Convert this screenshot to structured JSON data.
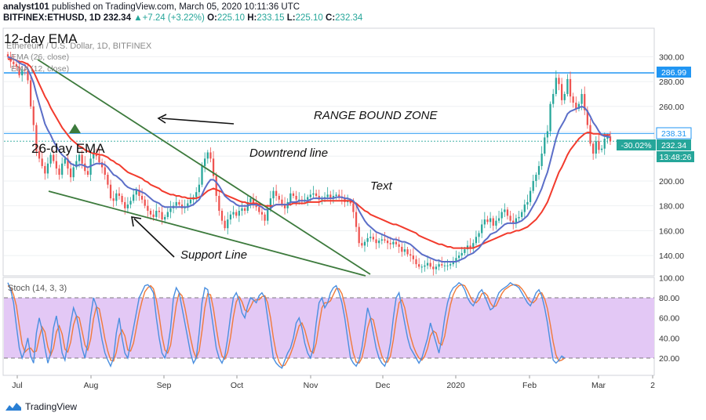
{
  "header": {
    "publisher": "analyst101",
    "published_text": "published on TradingView.com, March 05, 2020 10:11:36 UTC",
    "symbol": "BITFINEX:ETHUSD, 1D",
    "last": "232.34",
    "change": "+7.24 (+3.22%)",
    "ohlc": {
      "o": "225.10",
      "h": "233.15",
      "l": "225.10",
      "c": "232.34"
    }
  },
  "legend": {
    "title": "Ethereum / U.S. Dollar, 1D, BITFINEX",
    "ema1": "EMA (26, close)",
    "ema2": "EMA (12, close)"
  },
  "annotations": {
    "ema12": "12-day EMA",
    "ema26": "26-day EMA",
    "range_zone": "RANGE BOUND ZONE",
    "downtrend": "Downtrend line",
    "text": "Text",
    "support": "Support Line"
  },
  "price_labels": {
    "resistance": "286.99",
    "level2": "238.31",
    "current": "232.34",
    "pct": "-30.02%",
    "timer": "13:48:26"
  },
  "stoch_label": "Stoch (14, 3, 3)",
  "brand": "TradingView",
  "colors": {
    "up": "#26a69a",
    "down": "#ef5350",
    "ema_fast": "#5b6ec8",
    "ema_slow": "#f23b2d",
    "trendline": "#3c7a3c",
    "hline": "#2196f3",
    "stoch_fill": "#e3c8f5",
    "stoch_k": "#4a8fe0",
    "stoch_d": "#f07a3a"
  },
  "chart_data": {
    "type": "candlestick",
    "y_axis": {
      "ticks": [
        300,
        280,
        260,
        240,
        220,
        200,
        180,
        160,
        140
      ],
      "ylim": [
        130,
        318
      ]
    },
    "x_axis": {
      "ticks": [
        "Jul",
        "Aug",
        "Sep",
        "Oct",
        "Nov",
        "Dec",
        "2020",
        "Feb",
        "Mar",
        "2"
      ]
    },
    "horizontal_lines": [
      286.99,
      238.31
    ],
    "closes": [
      300,
      296,
      294,
      292,
      285,
      290,
      289,
      281,
      260,
      245,
      224,
      218,
      212,
      206,
      214,
      221,
      216,
      210,
      205,
      214,
      218,
      210,
      203,
      211,
      216,
      221,
      214,
      208,
      205,
      218,
      222,
      220,
      215,
      211,
      205,
      197,
      186,
      184,
      190,
      188,
      183,
      178,
      181,
      184,
      189,
      193,
      188,
      185,
      180,
      176,
      173,
      171,
      176,
      175,
      169,
      171,
      175,
      178,
      180,
      183,
      181,
      178,
      179,
      182,
      185,
      187,
      191,
      197,
      212,
      218,
      223,
      218,
      204,
      188,
      176,
      168,
      162,
      169,
      173,
      175,
      172,
      176,
      178,
      176,
      183,
      186,
      182,
      179,
      175,
      173,
      168,
      177,
      186,
      192,
      188,
      185,
      181,
      178,
      183,
      190,
      188,
      185,
      185,
      184,
      185,
      187,
      189,
      190,
      188,
      185,
      186,
      187,
      189,
      186,
      188,
      189,
      187,
      186,
      183,
      184,
      182,
      175,
      163,
      150,
      148,
      151,
      154,
      155,
      153,
      150,
      152,
      153,
      152,
      150,
      149,
      151,
      149,
      147,
      143,
      145,
      141,
      140,
      137,
      133,
      131,
      131,
      132,
      134,
      131,
      129,
      131,
      133,
      132,
      132,
      132,
      133,
      135,
      138,
      140,
      142,
      145,
      148,
      146,
      150,
      155,
      158,
      165,
      169,
      167,
      170,
      164,
      168,
      170,
      175,
      177,
      172,
      168,
      166,
      170,
      171,
      175,
      181,
      183,
      192,
      200,
      205,
      212,
      222,
      235,
      240,
      262,
      270,
      283,
      278,
      265,
      270,
      282,
      268,
      263,
      258,
      262,
      270,
      257,
      245,
      230,
      222,
      232,
      225,
      226,
      234,
      236,
      232
    ],
    "ema_12": [
      300,
      299,
      298,
      297,
      295,
      294,
      293,
      290,
      285,
      279,
      270,
      262,
      254,
      246,
      241,
      237,
      232,
      228,
      224,
      221,
      219,
      217,
      214,
      213,
      212,
      213,
      213,
      212,
      211,
      212,
      213,
      214,
      214,
      214,
      213,
      211,
      208,
      205,
      204,
      202,
      200,
      197,
      195,
      194,
      193,
      193,
      192,
      191,
      190,
      188,
      186,
      184,
      183,
      182,
      180,
      179,
      179,
      179,
      179,
      179,
      179,
      179,
      179,
      179,
      180,
      181,
      183,
      185,
      189,
      194,
      198,
      201,
      201,
      199,
      196,
      192,
      188,
      186,
      184,
      183,
      181,
      180,
      180,
      180,
      180,
      181,
      181,
      181,
      180,
      179,
      177,
      177,
      178,
      180,
      181,
      181,
      181,
      181,
      181,
      183,
      183,
      183,
      184,
      184,
      184,
      184,
      185,
      186,
      186,
      186,
      186,
      186,
      186,
      186,
      186,
      187,
      187,
      187,
      186,
      186,
      185,
      184,
      181,
      176,
      172,
      168,
      165,
      163,
      161,
      159,
      158,
      157,
      156,
      155,
      154,
      153,
      153,
      152,
      151,
      151,
      150,
      149,
      147,
      145,
      143,
      141,
      140,
      139,
      138,
      137,
      136,
      136,
      135,
      135,
      135,
      135,
      135,
      135,
      136,
      137,
      138,
      140,
      141,
      142,
      144,
      146,
      149,
      152,
      154,
      157,
      158,
      159,
      161,
      163,
      165,
      166,
      166,
      166,
      166,
      167,
      168,
      170,
      172,
      176,
      180,
      184,
      189,
      194,
      201,
      207,
      216,
      225,
      234,
      241,
      245,
      249,
      254,
      256,
      257,
      258,
      259,
      260,
      259,
      256,
      252,
      247,
      244,
      240,
      237,
      236,
      236,
      235
    ],
    "ema_26": [
      298,
      298,
      298,
      297,
      296,
      296,
      295,
      294,
      292,
      288,
      283,
      278,
      273,
      268,
      264,
      259,
      255,
      251,
      247,
      243,
      240,
      237,
      234,
      232,
      230,
      228,
      227,
      225,
      224,
      223,
      222,
      222,
      221,
      221,
      220,
      219,
      217,
      216,
      214,
      213,
      211,
      209,
      207,
      206,
      205,
      204,
      203,
      202,
      200,
      199,
      197,
      196,
      195,
      194,
      192,
      191,
      190,
      189,
      189,
      188,
      188,
      187,
      187,
      186,
      186,
      186,
      186,
      187,
      188,
      190,
      192,
      193,
      194,
      193,
      192,
      191,
      189,
      188,
      187,
      186,
      185,
      184,
      183,
      183,
      182,
      182,
      182,
      182,
      181,
      181,
      180,
      180,
      180,
      180,
      181,
      181,
      181,
      181,
      181,
      181,
      182,
      182,
      182,
      182,
      182,
      183,
      183,
      183,
      183,
      183,
      184,
      184,
      184,
      184,
      184,
      184,
      184,
      184,
      184,
      184,
      184,
      183,
      182,
      180,
      178,
      176,
      175,
      173,
      172,
      171,
      170,
      169,
      168,
      167,
      166,
      165,
      165,
      164,
      163,
      162,
      161,
      160,
      159,
      158,
      156,
      155,
      154,
      153,
      152,
      151,
      150,
      149,
      149,
      148,
      147,
      147,
      146,
      146,
      146,
      146,
      146,
      146,
      146,
      146,
      147,
      148,
      149,
      150,
      151,
      152,
      153,
      154,
      155,
      156,
      157,
      158,
      158,
      159,
      160,
      160,
      161,
      162,
      163,
      165,
      167,
      169,
      172,
      175,
      179,
      183,
      189,
      195,
      201,
      207,
      211,
      216,
      221,
      225,
      228,
      231,
      234,
      236,
      238,
      239,
      239,
      238,
      238,
      238,
      237,
      237,
      237,
      237
    ],
    "stoch_k": [
      95,
      88,
      75,
      52,
      30,
      20,
      28,
      40,
      22,
      15,
      45,
      60,
      48,
      30,
      15,
      25,
      50,
      62,
      45,
      25,
      18,
      35,
      55,
      70,
      62,
      48,
      30,
      20,
      35,
      62,
      80,
      72,
      55,
      38,
      25,
      18,
      12,
      20,
      45,
      60,
      40,
      25,
      20,
      35,
      50,
      65,
      80,
      86,
      92,
      93,
      90,
      85,
      60,
      40,
      25,
      20,
      30,
      50,
      80,
      90,
      85,
      70,
      55,
      40,
      25,
      15,
      20,
      45,
      75,
      90,
      88,
      70,
      50,
      30,
      20,
      15,
      22,
      40,
      62,
      80,
      85,
      78,
      65,
      60,
      72,
      80,
      78,
      75,
      82,
      85,
      80,
      60,
      40,
      20,
      15,
      12,
      10,
      18,
      25,
      30,
      40,
      55,
      60,
      50,
      35,
      25,
      20,
      30,
      55,
      75,
      80,
      70,
      75,
      85,
      90,
      92,
      85,
      75,
      60,
      40,
      20,
      15,
      12,
      18,
      30,
      50,
      70,
      60,
      45,
      30,
      20,
      15,
      12,
      20,
      35,
      60,
      80,
      85,
      70,
      55,
      40,
      30,
      25,
      20,
      15,
      20,
      30,
      40,
      55,
      45,
      35,
      25,
      40,
      60,
      75,
      85,
      90,
      92,
      95,
      93,
      88,
      80,
      75,
      72,
      78,
      85,
      88,
      82,
      75,
      68,
      70,
      78,
      85,
      88,
      90,
      92,
      95,
      93,
      92,
      90,
      85,
      80,
      75,
      72,
      78,
      85,
      88,
      82,
      70,
      55,
      35,
      18,
      15,
      18,
      22,
      20
    ],
    "stoch_d": [
      92,
      90,
      83,
      72,
      52,
      34,
      26,
      29,
      30,
      26,
      27,
      40,
      51,
      46,
      31,
      23,
      30,
      46,
      52,
      44,
      29,
      26,
      36,
      53,
      62,
      60,
      47,
      33,
      28,
      39,
      59,
      71,
      69,
      55,
      39,
      27,
      18,
      17,
      26,
      42,
      48,
      42,
      28,
      27,
      35,
      50,
      65,
      77,
      86,
      90,
      92,
      89,
      78,
      62,
      42,
      28,
      25,
      33,
      53,
      73,
      85,
      82,
      70,
      55,
      40,
      27,
      20,
      27,
      47,
      70,
      84,
      83,
      69,
      50,
      33,
      22,
      19,
      26,
      41,
      61,
      76,
      81,
      76,
      68,
      66,
      71,
      77,
      78,
      78,
      81,
      82,
      75,
      60,
      40,
      25,
      16,
      12,
      13,
      18,
      24,
      32,
      42,
      52,
      55,
      48,
      37,
      27,
      25,
      35,
      53,
      70,
      75,
      75,
      77,
      83,
      89,
      89,
      84,
      73,
      58,
      40,
      25,
      16,
      15,
      20,
      33,
      50,
      60,
      58,
      45,
      32,
      22,
      16,
      16,
      22,
      38,
      58,
      75,
      78,
      70,
      55,
      42,
      32,
      25,
      20,
      18,
      22,
      30,
      42,
      47,
      45,
      35,
      33,
      42,
      58,
      73,
      83,
      89,
      92,
      93,
      92,
      87,
      81,
      76,
      75,
      78,
      84,
      85,
      82,
      75,
      71,
      72,
      78,
      84,
      88,
      90,
      92,
      93,
      93,
      92,
      89,
      85,
      80,
      76,
      75,
      78,
      84,
      85,
      79,
      69,
      53,
      36,
      23,
      17,
      18,
      20
    ],
    "stoch_levels": [
      80,
      20
    ],
    "stoch_axis_ticks": [
      100,
      80,
      60,
      40,
      20
    ]
  }
}
